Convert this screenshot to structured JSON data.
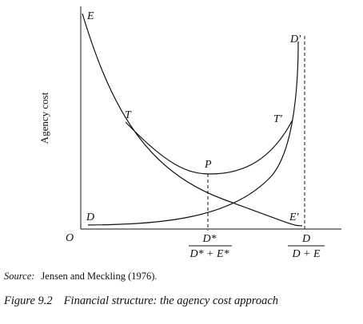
{
  "diagram": {
    "y_axis_label": "Agency cost",
    "origin_label": "O",
    "curve_labels": {
      "E": "E",
      "D_prime": "D'",
      "T": "T",
      "T_prime": "T'",
      "P": "P",
      "D": "D",
      "E_prime": "E'"
    },
    "x_tick_optimum": {
      "numerator": "D*",
      "denominator": "D* + E*"
    },
    "x_tick_full_debt": {
      "numerator": "D",
      "denominator": "D + E"
    }
  },
  "source": {
    "label": "Source:",
    "text": "Jensen and Meckling (1976)."
  },
  "caption": {
    "number": "Figure 9.2",
    "title": "Financial structure: the agency cost approach"
  }
}
